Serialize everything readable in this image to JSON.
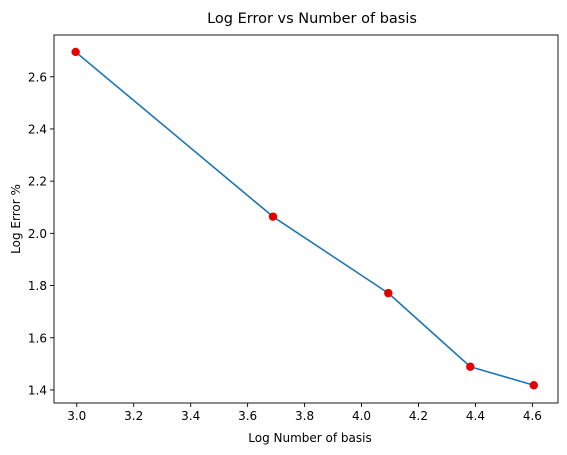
{
  "chart_data": {
    "type": "line",
    "title": "Log Error vs Number of basis",
    "xlabel": "Log Number of basis",
    "ylabel": "Log Error %",
    "xlim": [
      2.92,
      4.69
    ],
    "ylim": [
      1.35,
      2.76
    ],
    "xticks": [
      3.0,
      3.2,
      3.4,
      3.6,
      3.8,
      4.0,
      4.2,
      4.4,
      4.6
    ],
    "xtick_labels": [
      "3.0",
      "3.2",
      "3.4",
      "3.6",
      "3.8",
      "4.0",
      "4.2",
      "4.4",
      "4.6"
    ],
    "yticks": [
      1.4,
      1.6,
      1.8,
      2.0,
      2.2,
      2.4,
      2.6
    ],
    "ytick_labels": [
      "1.4",
      "1.6",
      "1.8",
      "2.0",
      "2.2",
      "2.4",
      "2.6"
    ],
    "grid": false,
    "series": [
      {
        "x": [
          2.996,
          3.689,
          4.094,
          4.382,
          4.605
        ],
        "y": [
          2.695,
          2.064,
          1.771,
          1.489,
          1.418
        ],
        "line_color": "#1f77b4",
        "marker_color": "#e50000"
      }
    ]
  }
}
